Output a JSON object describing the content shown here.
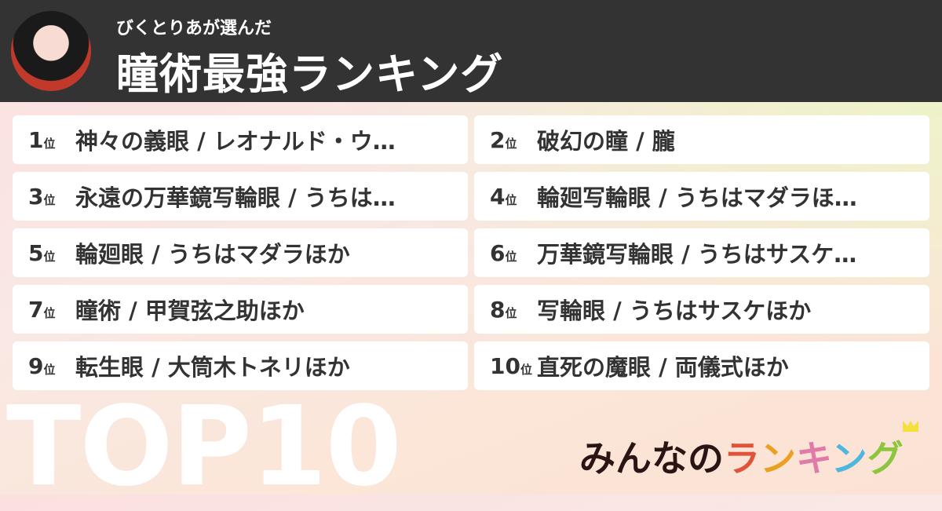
{
  "header": {
    "subtitle": "びくとりあが選んだ",
    "title": "瞳術最強ランキング"
  },
  "rank_suffix": "位",
  "items": [
    {
      "rank": "1",
      "name": "神々の義眼 / レオナルド・ウ…"
    },
    {
      "rank": "2",
      "name": "破幻の瞳 / 朧"
    },
    {
      "rank": "3",
      "name": "永遠の万華鏡写輪眼 / うちは…"
    },
    {
      "rank": "4",
      "name": "輪廻写輪眼 / うちはマダラほ…"
    },
    {
      "rank": "5",
      "name": "輪廻眼 / うちはマダラほか"
    },
    {
      "rank": "6",
      "name": "万華鏡写輪眼 / うちはサスケ…"
    },
    {
      "rank": "7",
      "name": "瞳術 / 甲賀弦之助ほか"
    },
    {
      "rank": "8",
      "name": "写輪眼 / うちはサスケほか"
    },
    {
      "rank": "9",
      "name": "転生眼 / 大筒木トネリほか"
    },
    {
      "rank": "10",
      "name": "直死の魔眼 / 両儀式ほか"
    }
  ],
  "footer": {
    "big_label": "TOP10",
    "logo": {
      "part1": "みんなの",
      "chars": [
        "ラ",
        "ン",
        "キ",
        "ン",
        "グ"
      ],
      "colors": [
        "#e0533a",
        "#eaa020",
        "#e07aa8",
        "#4fb6dd",
        "#8cc63e"
      ]
    }
  }
}
